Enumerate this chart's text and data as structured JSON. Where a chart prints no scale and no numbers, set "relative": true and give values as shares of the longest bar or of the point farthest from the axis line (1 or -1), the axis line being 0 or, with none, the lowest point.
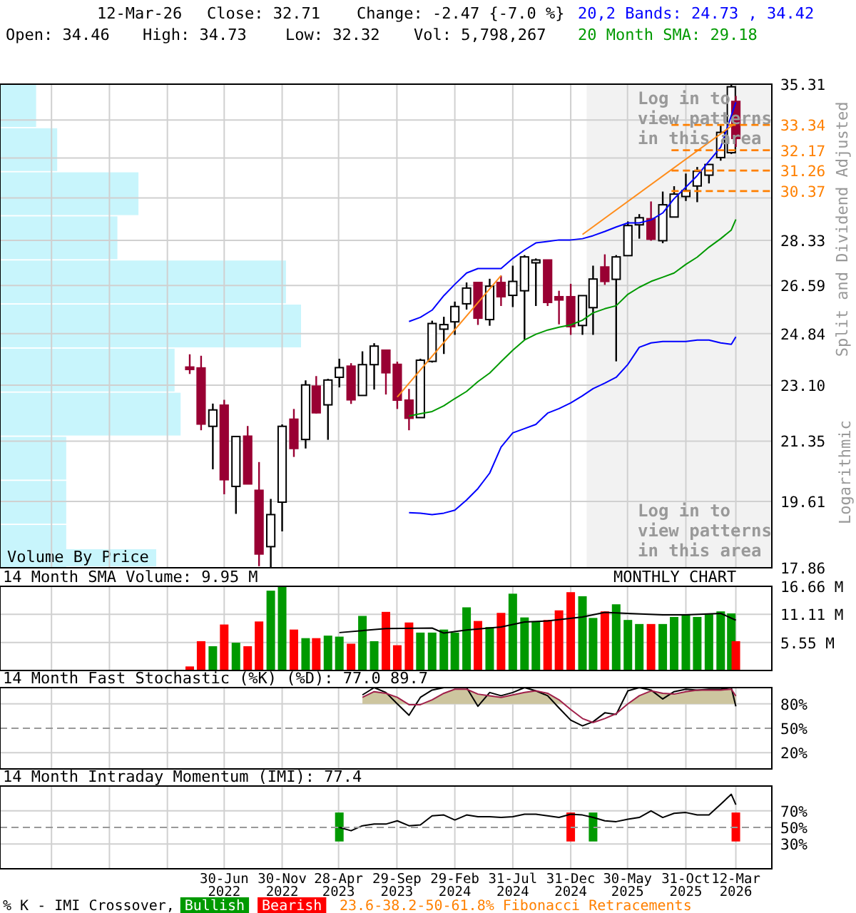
{
  "chart_data": [
    {
      "type": "candlestick",
      "log": true,
      "colors": [
        "#990033",
        "#990033",
        "#ffffff",
        "#990033",
        "#ffffff",
        "#990033",
        "#990033",
        "#ffffff",
        "#ffffff",
        "#990033",
        "#ffffff",
        "#990033",
        "#ffffff",
        "#ffffff",
        "#990033",
        "#ffffff",
        "#ffffff",
        "#990033",
        "#990033",
        "#990033",
        "#ffffff",
        "#ffffff",
        "#ffffff",
        "#ffffff",
        "#ffffff",
        "#990033",
        "#ffffff",
        "#990033",
        "#ffffff",
        "#ffffff",
        "#ffffff",
        "#990033",
        "#990033",
        "#990033",
        "#ffffff",
        "#ffffff",
        "#990033",
        "#ffffff",
        "#ffffff",
        "#ffffff",
        "#990033",
        "#ffffff",
        "#ffffff",
        "#ffffff",
        "#ffffff",
        "#ffffff",
        "#ffffff",
        "#ffffff",
        "#990033"
      ],
      "grid": true,
      "tick_labels": "y",
      "ylabel": "Split and Dividend Adjusted",
      "x": [
        "2022-03-31",
        "2022-04-30",
        "2022-05-31",
        "2022-06-30",
        "2022-07-31",
        "2022-08-31",
        "2022-09-30",
        "2022-10-31",
        "2022-11-30",
        "2022-12-31",
        "2023-01-31",
        "2023-02-28",
        "2023-03-31",
        "2023-04-30",
        "2023-05-31",
        "2023-06-30",
        "2023-07-31",
        "2023-08-31",
        "2023-09-30",
        "2023-10-31",
        "2023-11-30",
        "2023-12-31",
        "2024-01-31",
        "2024-02-29",
        "2024-03-31",
        "2024-04-30",
        "2024-05-31",
        "2024-06-30",
        "2024-07-31",
        "2024-08-31",
        "2024-09-30",
        "2024-10-31",
        "2024-11-30",
        "2024-12-31",
        "2025-01-31",
        "2025-02-28",
        "2025-03-31",
        "2025-04-30",
        "2025-05-31",
        "2025-06-30",
        "2025-07-31",
        "2025-08-31",
        "2025-09-30",
        "2025-10-31",
        "2025-11-30",
        "2025-12-31",
        "2026-01-31",
        "2026-02-28",
        "2026-03-12"
      ],
      "ohlc": [
        [
          23.7,
          24.13,
          23.47,
          23.62
        ],
        [
          23.67,
          24.08,
          21.68,
          21.87
        ],
        [
          21.8,
          22.51,
          20.52,
          22.31
        ],
        [
          22.46,
          22.63,
          19.81,
          20.22
        ],
        [
          20.03,
          21.49,
          19.27,
          21.49
        ],
        [
          21.5,
          21.81,
          20.1,
          20.1
        ],
        [
          19.92,
          20.73,
          17.9,
          18.21
        ],
        [
          18.4,
          19.68,
          17.86,
          19.25
        ],
        [
          19.59,
          21.86,
          18.8,
          21.8
        ],
        [
          22.02,
          22.34,
          20.88,
          21.13
        ],
        [
          21.4,
          23.26,
          21.13,
          23.11
        ],
        [
          23.07,
          23.4,
          22.2,
          22.22
        ],
        [
          22.47,
          23.31,
          21.39,
          23.27
        ],
        [
          23.36,
          23.98,
          23.03,
          23.68
        ],
        [
          23.73,
          23.83,
          22.5,
          22.63
        ],
        [
          22.77,
          24.23,
          22.77,
          23.78
        ],
        [
          23.78,
          24.51,
          22.96,
          24.41
        ],
        [
          24.27,
          24.27,
          22.8,
          23.51
        ],
        [
          23.79,
          23.88,
          22.34,
          22.62
        ],
        [
          22.62,
          22.98,
          21.68,
          22.05
        ],
        [
          22.07,
          23.98,
          22.07,
          23.93
        ],
        [
          23.89,
          25.3,
          23.85,
          25.2
        ],
        [
          25.0,
          25.44,
          24.14,
          25.16
        ],
        [
          25.26,
          25.99,
          24.8,
          25.81
        ],
        [
          25.91,
          26.7,
          25.7,
          26.49
        ],
        [
          26.7,
          26.7,
          25.15,
          25.39
        ],
        [
          25.34,
          26.84,
          25.12,
          26.56
        ],
        [
          26.7,
          26.96,
          25.83,
          26.17
        ],
        [
          26.22,
          27.34,
          25.79,
          26.74
        ],
        [
          26.39,
          27.75,
          24.62,
          27.68
        ],
        [
          27.45,
          27.62,
          25.83,
          27.56
        ],
        [
          27.56,
          27.56,
          25.83,
          25.96
        ],
        [
          26.17,
          26.39,
          25.17,
          26.05
        ],
        [
          26.17,
          26.65,
          24.8,
          25.09
        ],
        [
          25.13,
          26.21,
          24.8,
          26.21
        ],
        [
          25.77,
          27.34,
          24.8,
          26.83
        ],
        [
          27.29,
          27.78,
          26.61,
          26.74
        ],
        [
          26.82,
          27.75,
          23.89,
          27.68
        ],
        [
          27.73,
          29.1,
          27.73,
          28.93
        ],
        [
          28.96,
          29.4,
          28.4,
          29.25
        ],
        [
          29.21,
          29.93,
          28.32,
          28.38
        ],
        [
          28.32,
          30.35,
          28.22,
          29.79
        ],
        [
          29.28,
          30.58,
          29.28,
          30.24
        ],
        [
          30.14,
          31.13,
          29.95,
          30.39
        ],
        [
          30.59,
          31.42,
          29.9,
          31.23
        ],
        [
          31.06,
          31.53,
          30.7,
          31.53
        ],
        [
          31.84,
          33.33,
          31.7,
          32.99
        ],
        [
          32.06,
          35.31,
          32.0,
          35.18
        ],
        [
          34.46,
          34.73,
          32.32,
          32.71
        ]
      ],
      "xlim": [
        "2020-11-15",
        "2026-06-15"
      ],
      "xticks": [
        {
          "value": "2021-03-31",
          "label": null
        },
        {
          "value": "2021-08-31",
          "label": null
        },
        {
          "value": "2022-01-31",
          "label": null
        },
        {
          "value": "2022-06-30",
          "label": null
        },
        {
          "value": "2022-11-30",
          "label": null
        },
        {
          "value": "2023-04-28",
          "label": null
        },
        {
          "value": "2023-09-29",
          "label": null
        },
        {
          "value": "2024-02-29",
          "label": null
        },
        {
          "value": "2024-07-31",
          "label": null
        },
        {
          "value": "2024-12-31",
          "label": null
        },
        {
          "value": "2025-05-30",
          "label": null
        },
        {
          "value": "2025-10-31",
          "label": null
        },
        {
          "value": "2026-03-12",
          "label": null
        }
      ],
      "ylim": [
        17.86,
        35.31
      ],
      "yticks": [
        17.86,
        19.61,
        21.35,
        {
          "value": 23.1,
          "label": "23.10"
        },
        24.84,
        26.59,
        28.33,
        {
          "value": 30.08,
          "label": null
        },
        {
          "value": 31.82,
          "label": null
        },
        {
          "value": 33.57,
          "label": null
        },
        35.31
      ],
      "series": [
        {
          "type": "line",
          "color": "#0000ff",
          "x": [
            "2023-10-31",
            "2023-11-30",
            "2023-12-31",
            "2024-01-31",
            "2024-02-29",
            "2024-03-31",
            "2024-04-30",
            "2024-05-31",
            "2024-06-30",
            "2024-07-31",
            "2024-08-31",
            "2024-09-30",
            "2024-10-31",
            "2024-11-30",
            "2024-12-31",
            "2025-01-31",
            "2025-02-28",
            "2025-03-31",
            "2025-04-30",
            "2025-05-31",
            "2025-06-30",
            "2025-07-31",
            "2025-08-31",
            "2025-09-30",
            "2025-10-31",
            "2025-11-30",
            "2025-12-31",
            "2026-01-31",
            "2026-02-28",
            "2026-03-12"
          ],
          "values": [
            25.27,
            25.42,
            25.68,
            26.21,
            26.63,
            27.06,
            27.23,
            27.23,
            27.23,
            27.62,
            27.95,
            28.23,
            28.29,
            28.35,
            28.35,
            28.4,
            28.52,
            28.69,
            28.87,
            29.04,
            29.04,
            29.16,
            29.45,
            30.05,
            30.54,
            31.04,
            31.67,
            32.31,
            33.78,
            34.42
          ]
        },
        {
          "type": "line",
          "color": "#0000ff",
          "x": [
            "2023-10-31",
            "2023-11-30",
            "2023-12-31",
            "2024-01-31",
            "2024-02-29",
            "2024-03-31",
            "2024-04-30",
            "2024-05-31",
            "2024-06-30",
            "2024-07-31",
            "2024-08-31",
            "2024-09-30",
            "2024-10-31",
            "2024-11-30",
            "2024-12-31",
            "2025-01-31",
            "2025-02-28",
            "2025-03-31",
            "2025-04-30",
            "2025-05-31",
            "2025-06-30",
            "2025-07-31",
            "2025-08-31",
            "2025-09-30",
            "2025-10-31",
            "2025-11-30",
            "2025-12-31",
            "2026-01-31",
            "2026-02-28",
            "2026-03-12"
          ],
          "values": [
            19.3,
            19.29,
            19.25,
            19.29,
            19.37,
            19.65,
            19.97,
            20.41,
            21.17,
            21.6,
            21.73,
            21.86,
            22.21,
            22.35,
            22.53,
            22.76,
            22.99,
            23.17,
            23.36,
            23.79,
            24.37,
            24.52,
            24.57,
            24.57,
            24.57,
            24.62,
            24.62,
            24.52,
            24.47,
            24.73
          ]
        },
        {
          "type": "line",
          "color": "#009900",
          "x": [
            "2023-10-31",
            "2023-11-30",
            "2023-12-31",
            "2024-01-31",
            "2024-02-29",
            "2024-03-31",
            "2024-04-30",
            "2024-05-31",
            "2024-06-30",
            "2024-07-31",
            "2024-08-31",
            "2024-09-30",
            "2024-10-31",
            "2024-11-30",
            "2024-12-31",
            "2025-01-31",
            "2025-02-28",
            "2025-03-31",
            "2025-04-30",
            "2025-05-31",
            "2025-06-30",
            "2025-07-31",
            "2025-08-31",
            "2025-09-30",
            "2025-10-31",
            "2025-11-30",
            "2025-12-31",
            "2026-01-31",
            "2026-02-28",
            "2026-03-12"
          ],
          "values": [
            22.12,
            22.19,
            22.26,
            22.44,
            22.67,
            22.9,
            23.22,
            23.5,
            23.88,
            24.27,
            24.62,
            24.82,
            24.97,
            25.07,
            25.15,
            25.32,
            25.58,
            25.73,
            25.84,
            26.26,
            26.52,
            26.74,
            26.9,
            27.06,
            27.39,
            27.67,
            28.06,
            28.4,
            28.75,
            29.18
          ]
        },
        {
          "type": "line",
          "color": "#ff8c1a",
          "x": [
            "2023-09-30",
            "2024-06-30"
          ],
          "values": [
            22.72,
            26.96
          ]
        },
        {
          "type": "line",
          "color": "#ff8c1a",
          "x": [
            "2025-01-31",
            "2026-03-12"
          ],
          "values": [
            28.57,
            33.44
          ]
        }
      ],
      "ref_lines": [
        {
          "axis": "y",
          "value": 33.34,
          "label": "33.34",
          "color": "#ff8000",
          "line_style": "dashed"
        },
        {
          "axis": "y",
          "value": 32.17,
          "label": "32.17",
          "color": "#ff8000",
          "line_style": "dashed"
        },
        {
          "axis": "y",
          "value": 31.26,
          "label": "31.26",
          "color": "#ff8000",
          "line_style": "dashed"
        },
        {
          "axis": "y",
          "value": 30.37,
          "label": "30.37",
          "color": "#ff8000",
          "line_style": "dashed"
        }
      ],
      "bands": [
        {
          "axis": "x",
          "from": "2025-02-11",
          "to": "2026-06-15",
          "color": "#f2f2f2"
        }
      ],
      "annotations": [
        "12-Mar-26",
        "Close: 32.71",
        "Change: -2.47 {-7.0 %}",
        "Open: 34.46",
        "High: 34.73",
        "Low: 32.32",
        "Vol: 5,798,267",
        "20,2 Bands: 24.73 , 34.42",
        "20 Month SMA: 29.18",
        "Log in to view patterns in this area",
        "Log in to view patterns in this area",
        "Logarithmic",
        "23.6-38.2-50-61.8% Fibonacci Retracements"
      ]
    },
    {
      "type": "bar",
      "orientation": "horizontal",
      "relative": true,
      "title": "Volume By Price",
      "color": "#c8f5fc",
      "categories": [
        null,
        null,
        null,
        null,
        null,
        null,
        null,
        null,
        null,
        null,
        null
      ],
      "values": [
        0.12,
        0.19,
        0.46,
        0.39,
        0.95,
        1,
        0.58,
        0.6,
        0.22,
        0.22,
        0.22
      ]
    },
    {
      "type": "bar",
      "title": "14 Month SMA Volume: 9.95 M",
      "grid": true,
      "tick_labels": "y",
      "annotations": [
        "MONTHLY CHART"
      ],
      "x": [
        "2022-03-31",
        "2022-04-30",
        "2022-05-31",
        "2022-06-30",
        "2022-07-31",
        "2022-08-31",
        "2022-09-30",
        "2022-10-31",
        "2022-11-30",
        "2022-12-31",
        "2023-01-31",
        "2023-02-28",
        "2023-03-31",
        "2023-04-30",
        "2023-05-31",
        "2023-06-30",
        "2023-07-31",
        "2023-08-31",
        "2023-09-30",
        "2023-10-31",
        "2023-11-30",
        "2023-12-31",
        "2024-01-31",
        "2024-02-29",
        "2024-03-31",
        "2024-04-30",
        "2024-05-31",
        "2024-06-30",
        "2024-07-31",
        "2024-08-31",
        "2024-09-30",
        "2024-10-31",
        "2024-11-30",
        "2024-12-31",
        "2025-01-31",
        "2025-02-28",
        "2025-03-31",
        "2025-04-30",
        "2025-05-31",
        "2025-06-30",
        "2025-07-31",
        "2025-08-31",
        "2025-09-30",
        "2025-10-31",
        "2025-11-30",
        "2025-12-31",
        "2026-01-31",
        "2026-02-28",
        "2026-03-12"
      ],
      "xlim": [
        "2020-11-15",
        "2026-06-15"
      ],
      "xticks": [
        {
          "value": "2021-03-31",
          "label": null
        },
        {
          "value": "2021-08-31",
          "label": null
        },
        {
          "value": "2022-01-31",
          "label": null
        },
        {
          "value": "2022-06-30",
          "label": null
        },
        {
          "value": "2022-11-30",
          "label": null
        },
        {
          "value": "2023-04-28",
          "label": null
        },
        {
          "value": "2023-09-29",
          "label": null
        },
        {
          "value": "2024-02-29",
          "label": null
        },
        {
          "value": "2024-07-31",
          "label": null
        },
        {
          "value": "2024-12-31",
          "label": null
        },
        {
          "value": "2025-05-30",
          "label": null
        },
        {
          "value": "2025-10-31",
          "label": null
        },
        {
          "value": "2026-03-12",
          "label": null
        }
      ],
      "ylim": [
        0,
        16.66
      ],
      "yticks": [
        {
          "value": 5.55,
          "label": "5.55 M"
        },
        {
          "value": 11.11,
          "label": "11.11 M"
        },
        {
          "value": 16.66,
          "label": "16.66 M"
        }
      ],
      "series": [
        {
          "values": [
            0.8,
            5.8,
            4.8,
            9.1,
            5.5,
            4.8,
            9.7,
            15.8,
            16.6,
            8.1,
            6.4,
            6.4,
            6.9,
            6.7,
            5.3,
            10.8,
            5.8,
            11.6,
            5.0,
            9.5,
            7.5,
            7.5,
            8.1,
            7.5,
            12.5,
            9.8,
            8.6,
            11.4,
            15.2,
            10.5,
            9.6,
            10.0,
            11.9,
            15.5,
            14.7,
            10.4,
            11.7,
            13.1,
            10.0,
            9.2,
            9.2,
            9.2,
            10.6,
            11.0,
            10.6,
            11.3,
            11.7,
            11.3,
            5.8
          ],
          "colors": [
            "#ff0000",
            "#ff0000",
            "#009900",
            "#ff0000",
            "#009900",
            "#ff0000",
            "#ff0000",
            "#009900",
            "#009900",
            "#ff0000",
            "#009900",
            "#ff0000",
            "#009900",
            "#009900",
            "#ff0000",
            "#009900",
            "#009900",
            "#ff0000",
            "#ff0000",
            "#ff0000",
            "#009900",
            "#009900",
            "#009900",
            "#009900",
            "#009900",
            "#ff0000",
            "#009900",
            "#ff0000",
            "#009900",
            "#009900",
            "#009900",
            "#ff0000",
            "#ff0000",
            "#ff0000",
            "#009900",
            "#009900",
            "#ff0000",
            "#009900",
            "#009900",
            "#009900",
            "#ff0000",
            "#009900",
            "#009900",
            "#009900",
            "#009900",
            "#009900",
            "#009900",
            "#009900",
            "#ff0000"
          ]
        },
        {
          "type": "line",
          "color": "#000000",
          "x": [
            "2023-04-30",
            "2023-08-31",
            "2023-12-31",
            "2024-01-31",
            "2024-03-31",
            "2024-06-30",
            "2024-08-31",
            "2024-10-31",
            "2025-01-31",
            "2025-03-31",
            "2025-05-31",
            "2025-08-31",
            "2025-10-31",
            "2026-01-31",
            "2026-03-12"
          ],
          "values": [
            7.5,
            8.3,
            8.4,
            7.4,
            8.0,
            8.6,
            9.6,
            9.8,
            10.6,
            11.5,
            11.3,
            11.0,
            11.0,
            11.3,
            9.95
          ]
        }
      ]
    },
    {
      "type": "line",
      "title": "14 Month Fast Stochastic (%K) (%D): 77.0 89.7",
      "grid": true,
      "tick_labels": "y",
      "xlim": [
        "2020-11-15",
        "2026-06-15"
      ],
      "xticks": [
        {
          "value": "2021-03-31",
          "label": null
        },
        {
          "value": "2021-08-31",
          "label": null
        },
        {
          "value": "2022-01-31",
          "label": null
        },
        {
          "value": "2022-06-30",
          "label": null
        },
        {
          "value": "2022-11-30",
          "label": null
        },
        {
          "value": "2023-04-28",
          "label": null
        },
        {
          "value": "2023-09-29",
          "label": null
        },
        {
          "value": "2024-02-29",
          "label": null
        },
        {
          "value": "2024-07-31",
          "label": null
        },
        {
          "value": "2024-12-31",
          "label": null
        },
        {
          "value": "2025-05-30",
          "label": null
        },
        {
          "value": "2025-10-31",
          "label": null
        },
        {
          "value": "2026-03-12",
          "label": null
        }
      ],
      "ylim": [
        0,
        100
      ],
      "yticks": [
        {
          "value": 20,
          "label": "20%"
        },
        {
          "value": 50,
          "label": "50%"
        },
        {
          "value": 80,
          "label": "80%"
        }
      ],
      "ref_lines": [
        {
          "axis": "y",
          "value": 50,
          "color": "#999999",
          "line_style": "dashed"
        }
      ],
      "bands": [
        {
          "axis": "y",
          "from": 80,
          "to": 100,
          "color": "#cdc59f"
        }
      ],
      "series": [
        {
          "color": "#000000",
          "x": [
            "2023-06-30",
            "2023-07-31",
            "2023-08-31",
            "2023-09-30",
            "2023-10-31",
            "2023-11-30",
            "2023-12-31",
            "2024-01-31",
            "2024-02-29",
            "2024-03-31",
            "2024-04-30",
            "2024-05-31",
            "2024-06-30",
            "2024-07-31",
            "2024-08-31",
            "2024-09-30",
            "2024-10-31",
            "2024-11-30",
            "2024-12-31",
            "2025-01-31",
            "2025-02-28",
            "2025-03-31",
            "2025-04-30",
            "2025-05-31",
            "2025-06-30",
            "2025-07-31",
            "2025-08-31",
            "2025-09-30",
            "2025-10-31",
            "2025-11-30",
            "2025-12-31",
            "2026-01-31",
            "2026-02-28",
            "2026-03-12"
          ],
          "values": [
            91,
            100,
            94,
            80,
            66,
            88,
            97,
            100,
            100,
            100,
            77,
            94,
            90,
            94,
            100,
            96,
            90,
            75,
            60,
            53,
            58,
            69,
            67,
            96,
            100,
            97,
            86,
            95,
            98,
            97,
            98,
            98,
            100,
            77.0
          ]
        },
        {
          "color": "#a0204a",
          "x": [
            "2023-06-30",
            "2023-07-31",
            "2023-08-31",
            "2023-09-30",
            "2023-10-31",
            "2023-11-30",
            "2023-12-31",
            "2024-01-31",
            "2024-02-29",
            "2024-03-31",
            "2024-04-30",
            "2024-05-31",
            "2024-06-30",
            "2024-07-31",
            "2024-08-31",
            "2024-09-30",
            "2024-10-31",
            "2024-11-30",
            "2024-12-31",
            "2025-01-31",
            "2025-02-28",
            "2025-03-31",
            "2025-04-30",
            "2025-05-31",
            "2025-06-30",
            "2025-07-31",
            "2025-08-31",
            "2025-09-30",
            "2025-10-31",
            "2025-11-30",
            "2025-12-31",
            "2026-01-31",
            "2026-02-28",
            "2026-03-12"
          ],
          "values": [
            88,
            95,
            93,
            88,
            79,
            79,
            85,
            93,
            98,
            98,
            92,
            90,
            88,
            91,
            94,
            96,
            93,
            85,
            73,
            62,
            57,
            62,
            68,
            80,
            90,
            96,
            93,
            92,
            95,
            97,
            97,
            97,
            98,
            89.7
          ]
        }
      ]
    },
    {
      "type": "line",
      "title": "14 Month Intraday Momentum (IMI): 77.4",
      "grid": true,
      "legend": "bottom",
      "legend_title": "% K - IMI Crossover,",
      "xlim": [
        "2020-11-15",
        "2026-06-15"
      ],
      "xticks": [
        {
          "value": "2021-03-31",
          "label": null
        },
        {
          "value": "2021-08-31",
          "label": null
        },
        {
          "value": "2022-01-31",
          "label": null
        },
        {
          "value": "2022-06-30",
          "label": "30-Jun 2022"
        },
        {
          "value": "2022-11-30",
          "label": "30-Nov 2022"
        },
        {
          "value": "2023-04-28",
          "label": "28-Apr 2023"
        },
        {
          "value": "2023-09-29",
          "label": "29-Sep 2023"
        },
        {
          "value": "2024-02-29",
          "label": "29-Feb 2024"
        },
        {
          "value": "2024-07-31",
          "label": "31-Jul 2024"
        },
        {
          "value": "2024-12-31",
          "label": "31-Dec 2024"
        },
        {
          "value": "2025-05-30",
          "label": "30-May 2025"
        },
        {
          "value": "2025-10-31",
          "label": "31-Oct 2025"
        },
        {
          "value": "2026-03-12",
          "label": "12-Mar 2026"
        }
      ],
      "ylim": [
        0,
        100
      ],
      "yticks": [
        {
          "value": 30,
          "label": "30%"
        },
        {
          "value": 50,
          "label": "50%"
        },
        {
          "value": 70,
          "label": "70%"
        }
      ],
      "ref_lines": [
        {
          "axis": "y",
          "value": 50,
          "color": "#999999",
          "line_style": "dashed"
        }
      ],
      "series": [
        {
          "name": "Bullish",
          "type": "bar",
          "color": "#009900",
          "x": [
            "2023-04-30",
            "2025-02-28"
          ],
          "base": [
            33,
            33
          ],
          "values": [
            35,
            35
          ]
        },
        {
          "name": "Bearish",
          "type": "bar",
          "color": "#ff0000",
          "x": [
            "2024-12-31",
            "2026-03-12"
          ],
          "base": [
            33,
            33
          ],
          "values": [
            35,
            35
          ]
        },
        {
          "color": "#000000",
          "x": [
            "2023-04-30",
            "2023-05-31",
            "2023-06-30",
            "2023-07-31",
            "2023-08-31",
            "2023-09-30",
            "2023-10-31",
            "2023-11-30",
            "2023-12-31",
            "2024-01-31",
            "2024-02-29",
            "2024-03-31",
            "2024-04-30",
            "2024-05-31",
            "2024-06-30",
            "2024-07-31",
            "2024-08-31",
            "2024-09-30",
            "2024-10-31",
            "2024-11-30",
            "2024-12-31",
            "2025-01-31",
            "2025-02-28",
            "2025-03-31",
            "2025-04-30",
            "2025-05-31",
            "2025-06-30",
            "2025-07-31",
            "2025-08-31",
            "2025-09-30",
            "2025-10-31",
            "2025-11-30",
            "2025-12-31",
            "2026-01-31",
            "2026-02-28",
            "2026-03-12"
          ],
          "values": [
            50,
            46,
            52,
            54,
            54,
            58,
            52,
            53,
            64,
            65,
            59,
            65,
            63,
            63,
            62,
            63,
            66,
            66,
            64,
            62,
            66,
            65,
            62,
            58,
            57,
            60,
            62,
            70,
            62,
            67,
            68,
            65,
            65,
            78,
            90,
            77.4
          ]
        }
      ]
    }
  ]
}
